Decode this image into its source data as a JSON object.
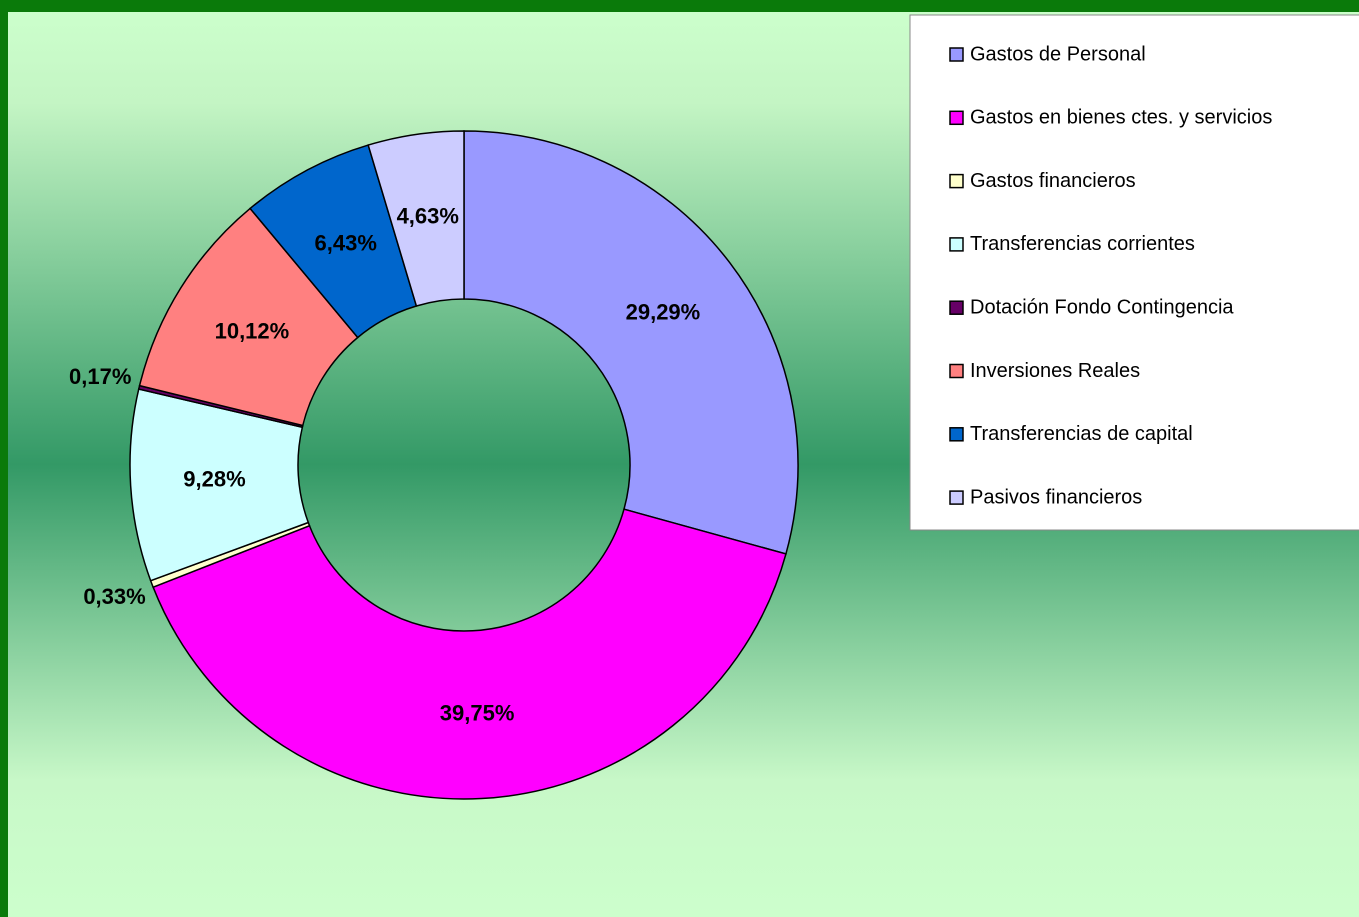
{
  "chart_data": {
    "type": "donut",
    "categories": [
      "Gastos de Personal",
      "Gastos en bienes ctes. y servicios",
      "Gastos financieros",
      "Transferencias corrientes",
      "Dotación Fondo Contingencia",
      "Inversiones Reales",
      "Transferencias de capital",
      "Pasivos financieros"
    ],
    "values": [
      29.29,
      39.75,
      0.33,
      9.28,
      0.17,
      10.12,
      6.43,
      4.63
    ],
    "value_labels": [
      "29,29%",
      "39,75%",
      "0,33%",
      "9,28%",
      "0,17%",
      "10,12%",
      "6,43%",
      "4,63%"
    ],
    "colors": [
      "#9999ff",
      "#ff00ff",
      "#ffffcc",
      "#ccffff",
      "#660066",
      "#ff8080",
      "#0066cc",
      "#ccccff"
    ],
    "legend": "right"
  }
}
